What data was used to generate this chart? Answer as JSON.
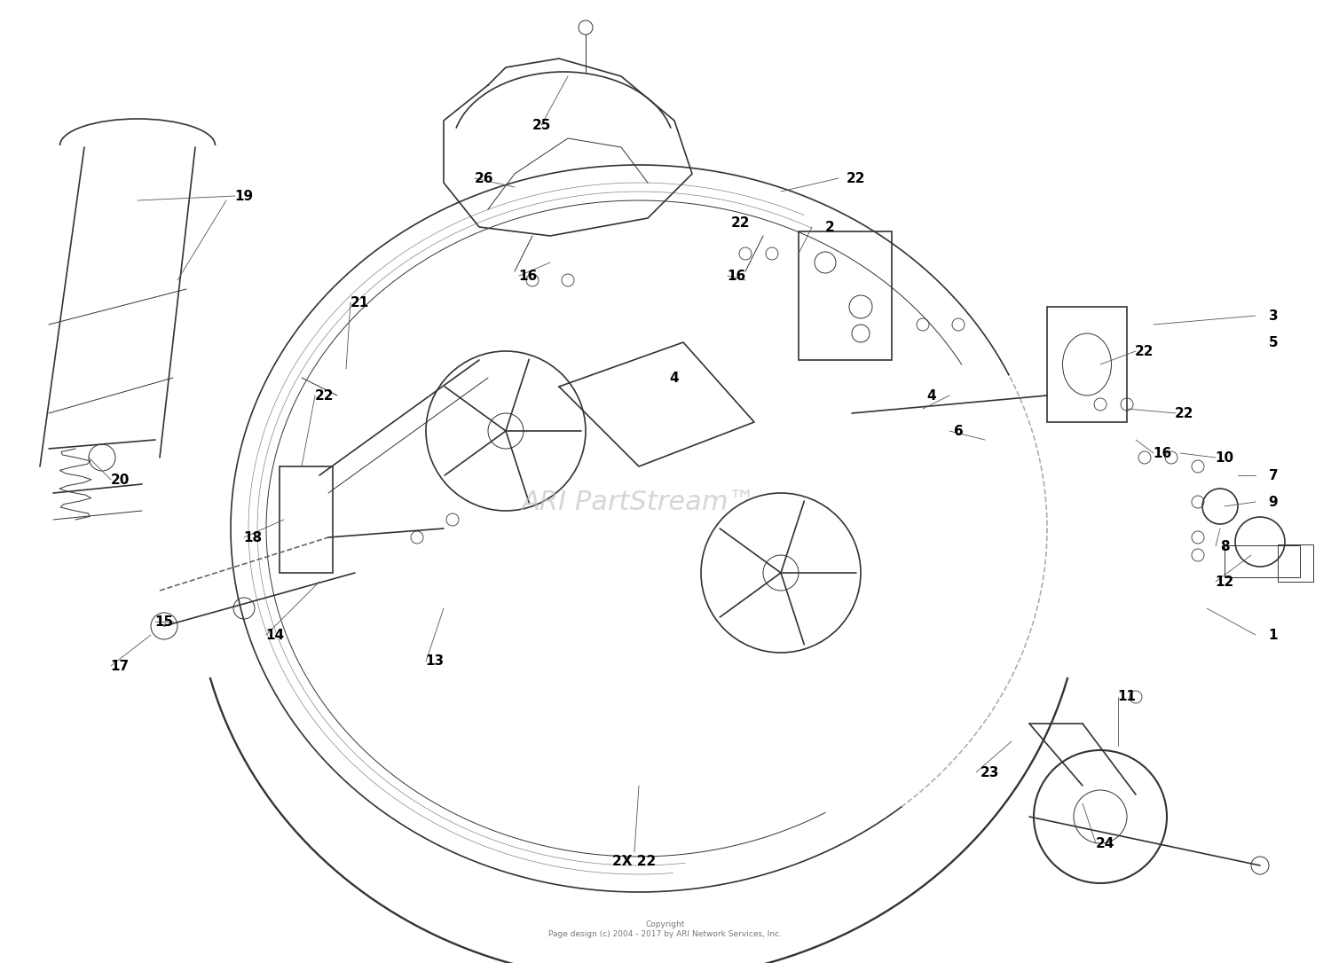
{
  "background_color": "#ffffff",
  "line_color": "#333333",
  "label_color": "#000000",
  "watermark_text": "ARI PartStream™",
  "watermark_color": "#cccccc",
  "copyright_text": "Copyright\nPage design (c) 2004 - 2017 by ARI Network Services, Inc.",
  "figsize": [
    15.0,
    10.86
  ],
  "dpi": 100
}
